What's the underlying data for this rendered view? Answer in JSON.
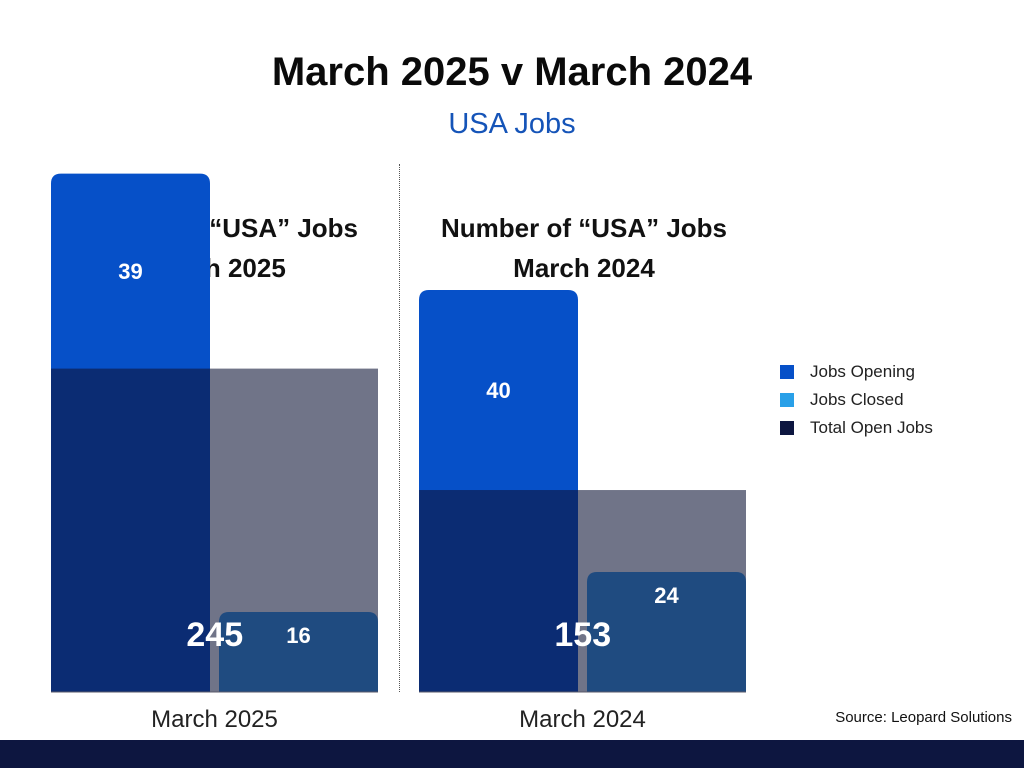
{
  "title": "March 2025 v March 2024",
  "subtitle": "USA Jobs",
  "source": "Source: Leopard Solutions",
  "colors": {
    "accent_text": "#1554b8",
    "jobs_opening": "#0650c8",
    "jobs_closed": "#29a0e8",
    "total_open_jobs": "#0d1640",
    "closed_bar_fill": "#1f4b80",
    "total_bar_fill": "#0b2c73",
    "background_band": "#707488",
    "footer": "#0d1640"
  },
  "chart_data": [
    {
      "type": "bar",
      "title": "Number of “USA” Jobs\nMarch 2025",
      "title_lines": [
        "Number of “USA” Jobs",
        "March 2025"
      ],
      "category": "March 2025",
      "series": [
        {
          "name": "Jobs Opening",
          "value": 39
        },
        {
          "name": "Jobs Closed",
          "value": 16
        },
        {
          "name": "Total Open Jobs",
          "value": 245
        }
      ]
    },
    {
      "type": "bar",
      "title": "Number of “USA” Jobs\nMarch 2024",
      "title_lines": [
        "Number of “USA” Jobs",
        "March 2024"
      ],
      "category": "March 2024",
      "series": [
        {
          "name": "Jobs Opening",
          "value": 40
        },
        {
          "name": "Jobs Closed",
          "value": 24
        },
        {
          "name": "Total Open Jobs",
          "value": 153
        }
      ]
    }
  ],
  "legend": {
    "placement": "right",
    "items": [
      {
        "label": "Jobs Opening",
        "color": "#0650c8"
      },
      {
        "label": "Jobs Closed",
        "color": "#29a0e8"
      },
      {
        "label": "Total Open Jobs",
        "color": "#0d1640"
      }
    ]
  }
}
